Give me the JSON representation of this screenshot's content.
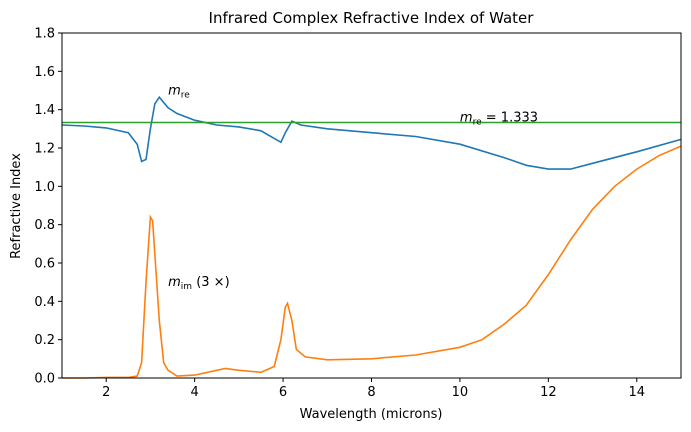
{
  "chart_data": {
    "type": "line",
    "title": "Infrared Complex Refractive Index of Water",
    "xlabel": "Wavelength (microns)",
    "ylabel": "Refractive Index",
    "xlim": [
      1,
      15
    ],
    "xticks": [
      2,
      4,
      6,
      8,
      10,
      12,
      14
    ],
    "ylim": [
      0,
      1.8
    ],
    "yticks": [
      {
        "value": 0,
        "label": "0.0"
      },
      0.2,
      0.4,
      0.6,
      0.8,
      {
        "value": 1,
        "label": "1.0"
      },
      1.2,
      1.4,
      1.6,
      1.8
    ],
    "series": [
      {
        "color": "#1f77b4",
        "x": [
          1.0,
          1.5,
          2.0,
          2.5,
          2.7,
          2.8,
          2.9,
          3.0,
          3.1,
          3.2,
          3.4,
          3.6,
          4.0,
          4.5,
          5.0,
          5.5,
          5.8,
          5.95,
          6.05,
          6.2,
          6.4,
          7.0,
          8.0,
          9.0,
          10.0,
          11.0,
          11.5,
          12.0,
          12.5,
          13.0,
          14.0,
          15.0
        ],
        "values": [
          1.32,
          1.315,
          1.305,
          1.28,
          1.22,
          1.13,
          1.14,
          1.3,
          1.43,
          1.465,
          1.41,
          1.38,
          1.345,
          1.32,
          1.31,
          1.29,
          1.25,
          1.23,
          1.28,
          1.34,
          1.32,
          1.3,
          1.28,
          1.26,
          1.22,
          1.15,
          1.11,
          1.09,
          1.09,
          1.12,
          1.18,
          1.245
        ]
      },
      {
        "color": "#ff7f0e",
        "x": [
          1.0,
          1.5,
          2.0,
          2.5,
          2.7,
          2.8,
          2.9,
          3.0,
          3.05,
          3.1,
          3.2,
          3.3,
          3.4,
          3.6,
          4.0,
          4.5,
          4.7,
          5.0,
          5.5,
          5.8,
          5.95,
          6.05,
          6.1,
          6.2,
          6.3,
          6.5,
          7.0,
          8.0,
          9.0,
          10.0,
          10.5,
          11.0,
          11.5,
          12.0,
          12.5,
          13.0,
          13.5,
          14.0,
          14.5,
          15.0
        ],
        "values": [
          0.0,
          0.0,
          0.003,
          0.003,
          0.01,
          0.08,
          0.5,
          0.84,
          0.82,
          0.65,
          0.3,
          0.08,
          0.04,
          0.01,
          0.015,
          0.04,
          0.05,
          0.04,
          0.03,
          0.06,
          0.2,
          0.37,
          0.39,
          0.3,
          0.15,
          0.11,
          0.095,
          0.1,
          0.12,
          0.16,
          0.2,
          0.28,
          0.38,
          0.54,
          0.72,
          0.88,
          1.0,
          1.09,
          1.16,
          1.21
        ]
      }
    ],
    "hline": {
      "value": 1.333,
      "color": "#2ca02c"
    },
    "annotations": [
      {
        "x": 3.4,
        "y": 1.5,
        "base": "m",
        "sub": "re",
        "suffix": ""
      },
      {
        "x": 10,
        "y": 1.36,
        "base": "m",
        "sub": "re",
        "suffix": " = 1.333"
      },
      {
        "x": 3.4,
        "y": 0.5,
        "base": "m",
        "sub": "im",
        "suffix": " (3 ×)"
      }
    ]
  }
}
